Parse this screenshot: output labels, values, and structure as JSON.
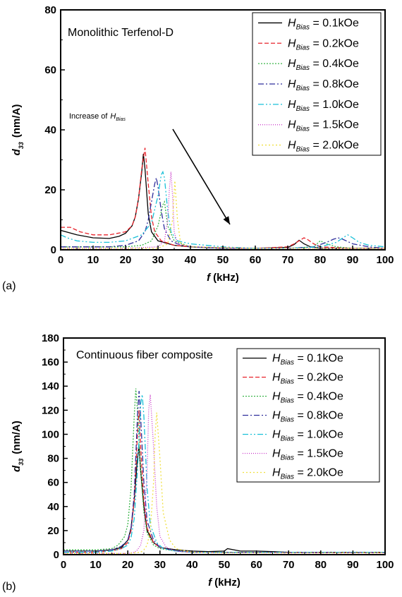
{
  "chart_data": [
    {
      "panel_label": "(a)",
      "type": "line",
      "annotation": "Monolithic Terfenol-D",
      "arrow_text": "Increase of",
      "arrow_text_var": "H",
      "arrow_text_sub": "Bias",
      "ylabel_var": "d",
      "ylabel_sub": "33",
      "ylabel_unit": "(nm/A)",
      "xlabel_var": "f",
      "xlabel_unit": "(kHz)",
      "xlim": [
        0,
        100
      ],
      "ylim": [
        0,
        80
      ],
      "xticks": [
        0,
        10,
        20,
        30,
        40,
        50,
        60,
        70,
        80,
        90,
        100
      ],
      "yticks": [
        0,
        20,
        40,
        60,
        80
      ],
      "legend_position": "top-right",
      "series": [
        {
          "name": "H_Bias = 0.1kOe",
          "var": "H",
          "sub": "Bias",
          "value": " = 0.1kOe",
          "color": "#000000",
          "dash": "",
          "x": [
            0,
            5,
            10,
            15,
            18,
            20,
            22,
            23,
            24,
            25,
            25.5,
            26,
            27,
            28,
            30,
            35,
            40,
            50,
            60,
            70,
            72,
            73.5,
            75,
            77,
            80,
            90,
            100
          ],
          "y": [
            6.5,
            5.0,
            4.0,
            3.8,
            4.5,
            5.5,
            8,
            11,
            17,
            26,
            32,
            27,
            12,
            6,
            3,
            1.5,
            1,
            0.5,
            0.5,
            0.8,
            1.8,
            3.2,
            2,
            1,
            0.5,
            0.5,
            0.5
          ]
        },
        {
          "name": "H_Bias = 0.2kOe",
          "var": "H",
          "sub": "Bias",
          "value": " = 0.2kOe",
          "color": "#e8242c",
          "dash": "6,3",
          "x": [
            0,
            3,
            6,
            10,
            15,
            20,
            22,
            23,
            24,
            25,
            26,
            27,
            28,
            29,
            31,
            35,
            40,
            50,
            60,
            70,
            72,
            75,
            76,
            78,
            80,
            90,
            100
          ],
          "y": [
            7.5,
            7.5,
            6,
            5,
            5,
            6,
            8,
            11,
            17,
            27,
            34,
            22,
            11,
            6,
            3,
            1.5,
            1,
            0.5,
            0.5,
            1,
            2,
            4,
            3.5,
            2,
            1,
            0.5,
            0.5
          ]
        },
        {
          "name": "H_Bias = 0.4kOe",
          "var": "H",
          "sub": "Bias",
          "value": " = 0.4kOe",
          "color": "#3bb54a",
          "dash": "2,2",
          "x": [
            0,
            5,
            10,
            15,
            20,
            25,
            28,
            30,
            31.5,
            32,
            33,
            35,
            40,
            50,
            60,
            70,
            78,
            80,
            82,
            85,
            90,
            100
          ],
          "y": [
            1,
            1,
            1,
            1,
            1,
            1.5,
            3,
            8,
            15,
            16,
            8,
            3,
            1,
            0.5,
            0.5,
            0.5,
            1,
            3,
            2,
            1,
            0.5,
            0.5
          ]
        },
        {
          "name": "H_Bias = 0.8kOe",
          "var": "H",
          "sub": "Bias",
          "value": " = 0.8kOe",
          "color": "#2e2e9c",
          "dash": "8,3,2,3",
          "x": [
            0,
            5,
            10,
            15,
            20,
            24,
            26,
            27,
            28,
            29,
            29.5,
            30,
            31,
            32,
            34,
            36,
            40,
            50,
            60,
            70,
            78,
            82,
            84,
            85.5,
            87,
            90,
            95,
            100
          ],
          "y": [
            1,
            1,
            1,
            1,
            1.5,
            3,
            6,
            10,
            16,
            22,
            24,
            21,
            13,
            7,
            3,
            2,
            1,
            0.5,
            0.5,
            0.5,
            1,
            2.5,
            3.5,
            4,
            3.5,
            2,
            1,
            0.5
          ]
        },
        {
          "name": "H_Bias = 1.0kOe",
          "var": "H",
          "sub": "Bias",
          "value": " = 1.0kOe",
          "color": "#19c0d8",
          "dash": "8,3,2,3,2,3",
          "x": [
            0,
            2,
            5,
            10,
            15,
            20,
            25,
            28,
            30,
            31,
            31.5,
            32,
            33,
            34,
            36,
            40,
            50,
            60,
            70,
            80,
            85,
            87,
            88.5,
            90,
            92,
            95,
            100
          ],
          "y": [
            5,
            4,
            3,
            2.5,
            2.5,
            3,
            5,
            9,
            18,
            25,
            26,
            24,
            13,
            6,
            3,
            2,
            1,
            0.5,
            0.5,
            1,
            2.5,
            4,
            5,
            4,
            2.5,
            1.5,
            1
          ]
        },
        {
          "name": "H_Bias = 1.5kOe",
          "var": "H",
          "sub": "Bias",
          "value": " = 1.5kOe",
          "color": "#c832c8",
          "dash": "1,2",
          "x": [
            0,
            10,
            20,
            30,
            32,
            33,
            33.5,
            34,
            34.5,
            35,
            36,
            40,
            60,
            100
          ],
          "y": [
            0.5,
            0.5,
            0.5,
            1,
            3,
            10,
            20,
            26,
            18,
            6,
            2,
            1,
            0.5,
            0.5
          ]
        },
        {
          "name": "H_Bias = 2.0kOe",
          "var": "H",
          "sub": "Bias",
          "value": " = 2.0kOe",
          "color": "#f0e040",
          "dash": "2,3",
          "x": [
            0,
            10,
            20,
            30,
            33,
            34.5,
            35.2,
            36,
            37,
            40,
            60,
            100
          ],
          "y": [
            0.5,
            0.5,
            0.5,
            0.5,
            2,
            10,
            23,
            10,
            2,
            1,
            0.5,
            0.5
          ]
        }
      ]
    },
    {
      "panel_label": "(b)",
      "type": "line",
      "annotation": "Continuous fiber composite",
      "ylabel_var": "d",
      "ylabel_sub": "33",
      "ylabel_unit": "(nm/A)",
      "xlabel_var": "f",
      "xlabel_unit": "(kHz)",
      "xlim": [
        0,
        100
      ],
      "ylim": [
        0,
        180
      ],
      "xticks": [
        0,
        10,
        20,
        30,
        40,
        50,
        60,
        70,
        80,
        90,
        100
      ],
      "yticks": [
        0,
        20,
        40,
        60,
        80,
        100,
        120,
        140,
        160,
        180
      ],
      "legend_position": "top-right",
      "series": [
        {
          "name": "H_Bias = 0.1kOe",
          "var": "H",
          "sub": "Bias",
          "value": " = 0.1kOe",
          "color": "#000000",
          "dash": "",
          "x": [
            0,
            5,
            10,
            15,
            18,
            20,
            21,
            22,
            23,
            23.5,
            24,
            25,
            26,
            28,
            30,
            35,
            40,
            45,
            50,
            51,
            55,
            60,
            65,
            70,
            80,
            90,
            100
          ],
          "y": [
            3,
            3,
            3,
            4,
            6,
            12,
            22,
            45,
            80,
            90,
            70,
            40,
            20,
            10,
            6,
            4,
            3,
            2.5,
            3,
            5,
            3,
            3,
            2.5,
            2,
            2,
            2,
            2
          ]
        },
        {
          "name": "H_Bias = 0.2kOe",
          "var": "H",
          "sub": "Bias",
          "value": " = 0.2kOe",
          "color": "#e8242c",
          "dash": "6,3",
          "x": [
            0,
            5,
            10,
            15,
            18,
            20,
            21,
            22,
            23,
            23.5,
            24,
            25,
            26,
            28,
            30,
            35,
            40,
            50,
            60,
            70,
            80,
            90,
            100
          ],
          "y": [
            2,
            2,
            2,
            3,
            5,
            10,
            20,
            45,
            100,
            120,
            90,
            45,
            22,
            10,
            6,
            3,
            2,
            2,
            2,
            1.5,
            1.5,
            1.5,
            1.5
          ]
        },
        {
          "name": "H_Bias = 0.4kOe",
          "var": "H",
          "sub": "Bias",
          "value": " = 0.4kOe",
          "color": "#3bb54a",
          "dash": "2,2",
          "x": [
            0,
            5,
            10,
            15,
            17,
            19,
            20,
            21,
            22,
            22.5,
            23,
            24,
            25,
            26,
            28,
            30,
            35,
            40,
            50,
            60,
            70,
            80,
            90,
            100
          ],
          "y": [
            4,
            4,
            4,
            5,
            8,
            15,
            25,
            55,
            115,
            138,
            120,
            70,
            35,
            18,
            8,
            5,
            3,
            2,
            2,
            2,
            2,
            2,
            2,
            2
          ]
        },
        {
          "name": "H_Bias = 0.8kOe",
          "var": "H",
          "sub": "Bias",
          "value": " = 0.8kOe",
          "color": "#2e2e9c",
          "dash": "8,3,2,3",
          "x": [
            0,
            5,
            10,
            15,
            18,
            20,
            21,
            22,
            23,
            23.5,
            24,
            25,
            26,
            28,
            30,
            35,
            40,
            50,
            60,
            70,
            80,
            90,
            100
          ],
          "y": [
            3,
            3,
            3,
            4,
            7,
            12,
            22,
            50,
            115,
            136,
            115,
            60,
            28,
            12,
            6,
            3,
            2,
            2,
            2,
            2,
            2,
            2,
            2
          ]
        },
        {
          "name": "H_Bias = 1.0kOe",
          "var": "H",
          "sub": "Bias",
          "value": " = 1.0kOe",
          "color": "#19c0d8",
          "dash": "8,3,2,3,2,3",
          "x": [
            0,
            5,
            10,
            15,
            18,
            20,
            21,
            22,
            23,
            24,
            24.5,
            25,
            26,
            27,
            29,
            31,
            35,
            40,
            50,
            60,
            70,
            80,
            90,
            100
          ],
          "y": [
            2,
            2,
            2,
            3,
            5,
            8,
            14,
            30,
            70,
            125,
            133,
            115,
            55,
            25,
            10,
            5,
            3,
            2,
            2,
            2,
            2,
            2,
            2,
            2
          ]
        },
        {
          "name": "H_Bias = 1.5kOe",
          "var": "H",
          "sub": "Bias",
          "value": " = 1.5kOe",
          "color": "#c832c8",
          "dash": "1,2",
          "x": [
            0,
            10,
            20,
            22,
            23,
            24,
            25,
            26,
            26.5,
            27,
            28,
            29,
            30,
            32,
            35,
            40,
            50,
            60,
            70,
            80,
            90,
            100
          ],
          "y": [
            1,
            1,
            1,
            2,
            4,
            8,
            20,
            70,
            120,
            133,
            90,
            40,
            15,
            6,
            3,
            2,
            1.5,
            1.5,
            1.5,
            1.5,
            1.5,
            1.5
          ]
        },
        {
          "name": "H_Bias = 2.0kOe",
          "var": "H",
          "sub": "Bias",
          "value": " = 2.0kOe",
          "color": "#f0e040",
          "dash": "2,3",
          "x": [
            0,
            10,
            20,
            24,
            25,
            26,
            27,
            28,
            28.5,
            29,
            30,
            31,
            33,
            35,
            40,
            50,
            60,
            70,
            80,
            90,
            100
          ],
          "y": [
            1,
            1,
            1,
            2,
            4,
            8,
            20,
            60,
            100,
            118,
            80,
            35,
            12,
            5,
            2,
            1.5,
            1.5,
            1.5,
            1.5,
            1.5,
            1.5
          ]
        }
      ]
    }
  ]
}
